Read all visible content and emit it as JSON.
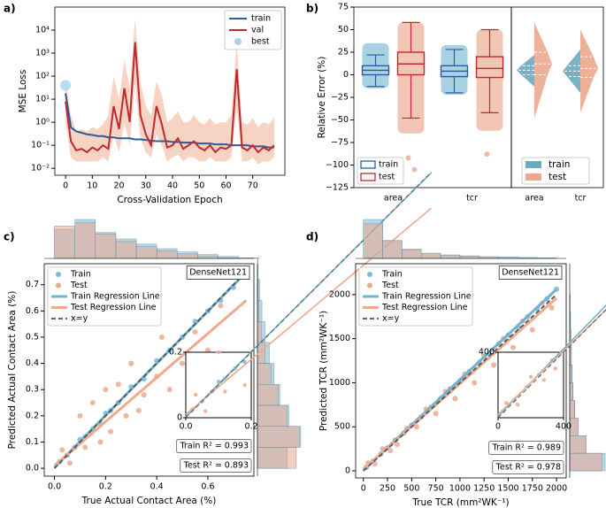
{
  "chart_data": [
    {
      "type": "line",
      "panel_label": "a)",
      "x_label": "Cross-Validation Epoch",
      "y_label": "MSE Loss",
      "log_y": true,
      "xlim": [
        -4,
        82
      ],
      "xticks": [
        0,
        10,
        20,
        30,
        40,
        50,
        60,
        70
      ],
      "ylim": [
        0.005,
        100000
      ],
      "yticks": [
        {
          "value": 0.01,
          "label": "10⁻²"
        },
        {
          "value": 0.1,
          "label": "10⁻¹"
        },
        {
          "value": 1,
          "label": "10⁰"
        },
        {
          "value": 10,
          "label": "10¹"
        },
        {
          "value": 100,
          "label": "10²"
        },
        {
          "value": 1000,
          "label": "10³"
        },
        {
          "value": 10000,
          "label": "10⁴"
        }
      ],
      "x": [
        0,
        2,
        4,
        6,
        8,
        10,
        12,
        14,
        16,
        18,
        20,
        22,
        24,
        26,
        28,
        30,
        32,
        34,
        36,
        38,
        40,
        42,
        44,
        46,
        48,
        50,
        52,
        54,
        56,
        58,
        60,
        62,
        64,
        66,
        68,
        70,
        72,
        74,
        76,
        78
      ],
      "series": [
        {
          "name": "train",
          "color": "#2b5c9e",
          "values": [
            18,
            0.6,
            0.4,
            0.35,
            0.3,
            0.28,
            0.25,
            0.25,
            0.22,
            0.22,
            0.2,
            0.2,
            0.2,
            0.18,
            0.18,
            0.17,
            0.16,
            0.15,
            0.15,
            0.15,
            0.14,
            0.14,
            0.13,
            0.13,
            0.13,
            0.12,
            0.12,
            0.12,
            0.11,
            0.11,
            0.11,
            0.1,
            0.1,
            0.1,
            0.1,
            0.09,
            0.09,
            0.09,
            0.08,
            0.08
          ]
        },
        {
          "name": "val",
          "color": "#c0282d",
          "values": [
            8,
            0.15,
            0.06,
            0.07,
            0.05,
            0.08,
            0.06,
            0.1,
            0.07,
            5,
            0.5,
            30,
            1,
            3000,
            2,
            0.3,
            0.1,
            5,
            0.8,
            0.08,
            0.1,
            0.2,
            0.07,
            0.1,
            0.15,
            0.08,
            0.06,
            0.1,
            0.05,
            0.08,
            0.07,
            0.1,
            200,
            0.08,
            0.06,
            0.1,
            0.05,
            0.08,
            0.06,
            0.1
          ],
          "band_color": "#f3c4ad",
          "band_low": [
            1,
            0.03,
            0.02,
            0.02,
            0.02,
            0.02,
            0.02,
            0.03,
            0.02,
            0.3,
            0.05,
            1,
            0.1,
            50,
            0.2,
            0.05,
            0.03,
            0.3,
            0.1,
            0.02,
            0.03,
            0.04,
            0.02,
            0.03,
            0.03,
            0.02,
            0.02,
            0.03,
            0.02,
            0.02,
            0.02,
            0.03,
            5,
            0.02,
            0.02,
            0.03,
            0.015,
            0.02,
            0.02,
            0.03
          ],
          "band_high": [
            60,
            2,
            0.4,
            0.5,
            0.4,
            0.6,
            0.5,
            0.8,
            2,
            100,
            10,
            500,
            30,
            30000,
            50,
            5,
            2,
            60,
            15,
            1,
            1.5,
            3,
            1,
            1,
            2,
            1,
            0.8,
            1.5,
            0.8,
            1,
            1,
            2,
            3000,
            1,
            0.8,
            1.5,
            0.6,
            1,
            0.8,
            1.5
          ]
        },
        {
          "name": "best",
          "color": "#a8d4e6",
          "x": [
            0
          ],
          "values": [
            40
          ]
        }
      ]
    },
    {
      "type": "box",
      "panel_label": "b)",
      "y_label": "Relative Error (%)",
      "ylim": [
        -125,
        75
      ],
      "yticks": [
        {
          "value": -125,
          "label": "−125"
        },
        {
          "value": -100,
          "label": "−100"
        },
        {
          "value": -75,
          "label": "−75"
        },
        {
          "value": -50,
          "label": "−50"
        },
        {
          "value": -25,
          "label": "−25"
        },
        0,
        25,
        50,
        75
      ],
      "categories": [
        "area",
        "tcr"
      ],
      "series": [
        {
          "name": "train",
          "color": "#2b5c9e",
          "point_color": "#7ab8d4",
          "violin_color": "#6aaac0",
          "stats": [
            {
              "whislo": -13,
              "q1": 0,
              "med": 5,
              "q3": 10,
              "whishi": 22,
              "min": -15,
              "max": 35,
              "outliers": []
            },
            {
              "whislo": -20,
              "q1": -2,
              "med": 4,
              "q3": 10,
              "whishi": 28,
              "min": -22,
              "max": 33,
              "outliers": []
            }
          ]
        },
        {
          "name": "test",
          "color": "#c0282d",
          "point_color": "#eba88e",
          "violin_color": "#eba88e",
          "stats": [
            {
              "whislo": -48,
              "q1": 0,
              "med": 12,
              "q3": 25,
              "whishi": 58,
              "min": -65,
              "max": 58,
              "outliers": [
                -92,
                -105
              ]
            },
            {
              "whislo": -42,
              "q1": -3,
              "med": 7,
              "q3": 20,
              "whishi": 50,
              "min": -62,
              "max": 50,
              "outliers": [
                -88
              ]
            }
          ]
        }
      ]
    },
    {
      "type": "scatter",
      "panel_label": "c)",
      "annotation": "DenseNet121",
      "x_label": "True Actual Contact Area (%)",
      "y_label": "Predicted Actual Contact Area (%)",
      "xlim": [
        -0.04,
        0.78
      ],
      "xticks": [
        {
          "value": 0,
          "label": "0.0"
        },
        0.2,
        0.4,
        0.6
      ],
      "ylim": [
        -0.03,
        0.78
      ],
      "yticks": [
        {
          "value": 0,
          "label": "0.0"
        },
        0.1,
        0.2,
        0.3,
        0.4,
        0.5,
        0.6,
        0.7
      ],
      "series": [
        {
          "name": "Train",
          "color": "#7ab8d4",
          "x": [
            0.02,
            0.05,
            0.08,
            0.1,
            0.12,
            0.15,
            0.18,
            0.2,
            0.22,
            0.25,
            0.3,
            0.35,
            0.4,
            0.45,
            0.5,
            0.55,
            0.6,
            0.65,
            0.7,
            0.74
          ],
          "y": [
            0.025,
            0.05,
            0.08,
            0.11,
            0.12,
            0.15,
            0.17,
            0.21,
            0.22,
            0.25,
            0.31,
            0.34,
            0.41,
            0.45,
            0.5,
            0.56,
            0.6,
            0.64,
            0.69,
            0.73
          ]
        },
        {
          "name": "Test",
          "color": "#eba88e",
          "x": [
            0.03,
            0.06,
            0.1,
            0.12,
            0.15,
            0.18,
            0.2,
            0.22,
            0.25,
            0.28,
            0.3,
            0.33,
            0.35,
            0.4,
            0.42,
            0.45,
            0.5,
            0.55,
            0.6,
            0.65
          ],
          "y": [
            0.07,
            0.02,
            0.2,
            0.08,
            0.25,
            0.1,
            0.3,
            0.14,
            0.32,
            0.2,
            0.4,
            0.22,
            0.28,
            0.35,
            0.5,
            0.3,
            0.4,
            0.52,
            0.45,
            0.62
          ]
        }
      ],
      "lines": [
        {
          "name": "Train Regression Line",
          "color": "#6fb3d2",
          "x": [
            0,
            0.75
          ],
          "y": [
            0.003,
            0.748
          ]
        },
        {
          "name": "Test Regression Line",
          "color": "#f0a98a",
          "x": [
            0,
            0.75
          ],
          "y": [
            0.01,
            0.64
          ]
        },
        {
          "name": "x=y",
          "color": "#555555",
          "dashed": true,
          "x": [
            0,
            0.75
          ],
          "y": [
            0,
            0.75
          ]
        }
      ],
      "inset": {
        "xlim": [
          0,
          0.2
        ],
        "ylim": [
          0,
          0.2
        ],
        "xticks": [
          {
            "value": 0,
            "label": "0.0"
          },
          0.2
        ],
        "yticks": [
          0,
          0.2
        ]
      },
      "r2_labels": [
        "Train R² = 0.993",
        "Test R² = 0.893"
      ],
      "hist_x": {
        "bins": [
          0,
          0.08,
          0.16,
          0.24,
          0.32,
          0.4,
          0.48,
          0.56,
          0.64,
          0.72,
          0.8
        ],
        "counts": [
          [
            45,
            60,
            40,
            30,
            22,
            15,
            10,
            6,
            3,
            1
          ],
          [
            50,
            55,
            38,
            26,
            18,
            12,
            7,
            3,
            1,
            0
          ]
        ]
      },
      "hist_y": {
        "bins": [
          0,
          0.08,
          0.16,
          0.24,
          0.32,
          0.4,
          0.48,
          0.56,
          0.64,
          0.72,
          0.8
        ],
        "counts": [
          [
            40,
            58,
            42,
            30,
            22,
            16,
            10,
            6,
            3,
            1
          ],
          [
            52,
            56,
            40,
            28,
            18,
            10,
            5,
            2,
            1,
            0
          ]
        ]
      }
    },
    {
      "type": "scatter",
      "panel_label": "d)",
      "annotation": "DenseNet121",
      "x_label": "True TCR (mm²WK⁻¹)",
      "y_label": "Predicted TCR (mm²WK⁻¹)",
      "xlim": [
        -80,
        2100
      ],
      "xticks": [
        0,
        250,
        500,
        750,
        1000,
        1250,
        1500,
        1750,
        2000
      ],
      "ylim": [
        -80,
        2350
      ],
      "yticks": [
        0,
        500,
        1000,
        1500,
        2000
      ],
      "series": [
        {
          "name": "Train",
          "color": "#7ab8d4",
          "x": [
            30,
            100,
            180,
            250,
            330,
            420,
            500,
            600,
            700,
            800,
            900,
            1000,
            1100,
            1200,
            1300,
            1400,
            1500,
            1600,
            1700,
            1800,
            1900,
            2000
          ],
          "y": [
            40,
            110,
            190,
            260,
            350,
            430,
            520,
            610,
            720,
            820,
            930,
            1020,
            1130,
            1230,
            1330,
            1440,
            1540,
            1630,
            1750,
            1840,
            1950,
            2060
          ]
        },
        {
          "name": "Test",
          "color": "#eba88e",
          "x": [
            50,
            120,
            200,
            280,
            350,
            450,
            550,
            650,
            750,
            850,
            950,
            1050,
            1150,
            1250,
            1350,
            1450,
            1550,
            1650,
            1750,
            1850,
            1950
          ],
          "y": [
            90,
            80,
            250,
            230,
            300,
            480,
            500,
            700,
            650,
            900,
            820,
            1100,
            1000,
            1300,
            1200,
            1500,
            1400,
            1700,
            1600,
            1900,
            1850
          ]
        }
      ],
      "lines": [
        {
          "name": "Train Regression Line",
          "color": "#6fb3d2",
          "x": [
            0,
            2000
          ],
          "y": [
            10,
            2060
          ]
        },
        {
          "name": "Test Regression Line",
          "color": "#f0a98a",
          "x": [
            0,
            2000
          ],
          "y": [
            20,
            1960
          ]
        },
        {
          "name": "x=y",
          "color": "#555555",
          "dashed": true,
          "x": [
            0,
            2000
          ],
          "y": [
            0,
            2000
          ]
        }
      ],
      "inset": {
        "xlim": [
          0,
          400
        ],
        "ylim": [
          0,
          400
        ],
        "xticks": [
          0,
          400
        ],
        "yticks": [
          400
        ]
      },
      "r2_labels": [
        "Train R² = 0.989",
        "Test R² = 0.978"
      ],
      "hist_x": {
        "bins": [
          0,
          200,
          400,
          600,
          800,
          1000,
          1200,
          1400,
          1600,
          1800,
          2000
        ],
        "counts": [
          [
            90,
            40,
            20,
            12,
            8,
            6,
            4,
            3,
            2,
            1
          ],
          [
            80,
            42,
            22,
            12,
            8,
            5,
            4,
            3,
            2,
            1
          ]
        ]
      },
      "hist_y": {
        "bins": [
          0,
          200,
          400,
          600,
          800,
          1000,
          1200,
          1400,
          1600,
          1800,
          2000
        ],
        "counts": [
          [
            85,
            38,
            20,
            12,
            8,
            6,
            4,
            3,
            2,
            1
          ],
          [
            78,
            40,
            20,
            11,
            7,
            5,
            4,
            3,
            2,
            1
          ]
        ]
      }
    }
  ]
}
